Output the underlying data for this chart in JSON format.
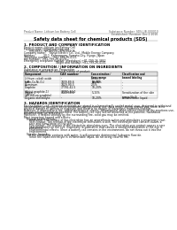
{
  "bg_color": "#ffffff",
  "header_left": "Product Name: Lithium Ion Battery Cell",
  "header_right_line1": "Substance Number: SDS-LIB-000010",
  "header_right_line2": "Established / Revision: Dec.1 2010",
  "title": "Safety data sheet for chemical products (SDS)",
  "section1_title": "1. PRODUCT AND COMPANY IDENTIFICATION",
  "s1_items": [
    "Product name: Lithium Ion Battery Cell",
    "Product code: Cylindrical-type cell",
    "      IVR18650, IVR18650L, IVR18650A",
    "Company name:    Sanyo Electric Co., Ltd., Mobile Energy Company",
    "Address:         20-1  Kannonaura, Sumoto-City, Hyogo, Japan",
    "Telephone number:    +81-799-26-4111",
    "Fax number:  +81-799-26-4120",
    "Emergency telephone number (Weekdays) +81-799-26-3862",
    "                                    (Night and holiday) +81-799-26-4101"
  ],
  "section2_title": "2. COMPOSITION / INFORMATION ON INGREDIENTS",
  "s2_intro": [
    "Substance or preparation: Preparation",
    "Information about the chemical nature of product:"
  ],
  "table_headers": [
    "Component",
    "CAS number",
    "Concentration /\nConcentration range\n(wt-%)",
    "Classification and\nhazard labeling"
  ],
  "table_rows": [
    [
      "Lithium cobalt oxide\n(LiMn-Co-Ni-O₄)",
      "-",
      "30-60%",
      "-"
    ],
    [
      "Iron",
      "7439-89-6",
      "10-20%",
      "-"
    ],
    [
      "Aluminum",
      "7429-90-5",
      "2-5%",
      "-"
    ],
    [
      "Graphite\n(Artist graphite-1)\n(AR168-on graphite)",
      "77782-42-5\n77782-44-0",
      "10-20%",
      "-"
    ],
    [
      "Copper",
      "7440-50-8",
      "5-15%",
      "Sensitization of the skin\ngroup No.2"
    ],
    [
      "Organic electrolyte",
      "-",
      "10-20%",
      "Inflammable liquid"
    ]
  ],
  "section3_title": "3. HAZARDS IDENTIFICATION",
  "s3_text": [
    "For the battery cell, chemical materials are stored in a hermetically sealed metal case, designed to withstand",
    "temperatures or pressure-stress conditions during normal use. As a result, during normal use, there is no",
    "physical danger of ignition or explosion and there is no danger of hazardous materials leakage.",
    "However, if exposed to a fire, added mechanical shocks, decomposed, when electro-chemical dry reactions use,",
    "the gas release cannot be operated. The battery cell case will be breached at fire-patients. hazardous",
    "materials may be released.",
    "Moreover, if heated strongly by the surrounding fire, solid gas may be emitted.",
    "",
    "Most important hazard and effects:",
    "   Human health effects:",
    "      Inhalation: The release of the electrolyte has an anaesthesia action and stimulates a respiratory tract.",
    "      Skin contact: The release of the electrolyte stimulates a skin. The electrolyte skin contact causes a",
    "      sore and stimulation on the skin.",
    "      Eye contact: The release of the electrolyte stimulates eyes. The electrolyte eye contact causes a sore",
    "      and stimulation on the eye. Especially, a substance that causes a strong inflammation of the eye is",
    "      contained.",
    "      Environmental effects: Since a battery cell remains in the environment, do not throw out it into the",
    "      environment.",
    "",
    "   Specific hazards:",
    "      If the electrolyte contacts with water, it will generate detrimental hydrogen fluoride.",
    "      Since the liquid electrolyte is inflammable liquid, do not bring close to fire."
  ]
}
